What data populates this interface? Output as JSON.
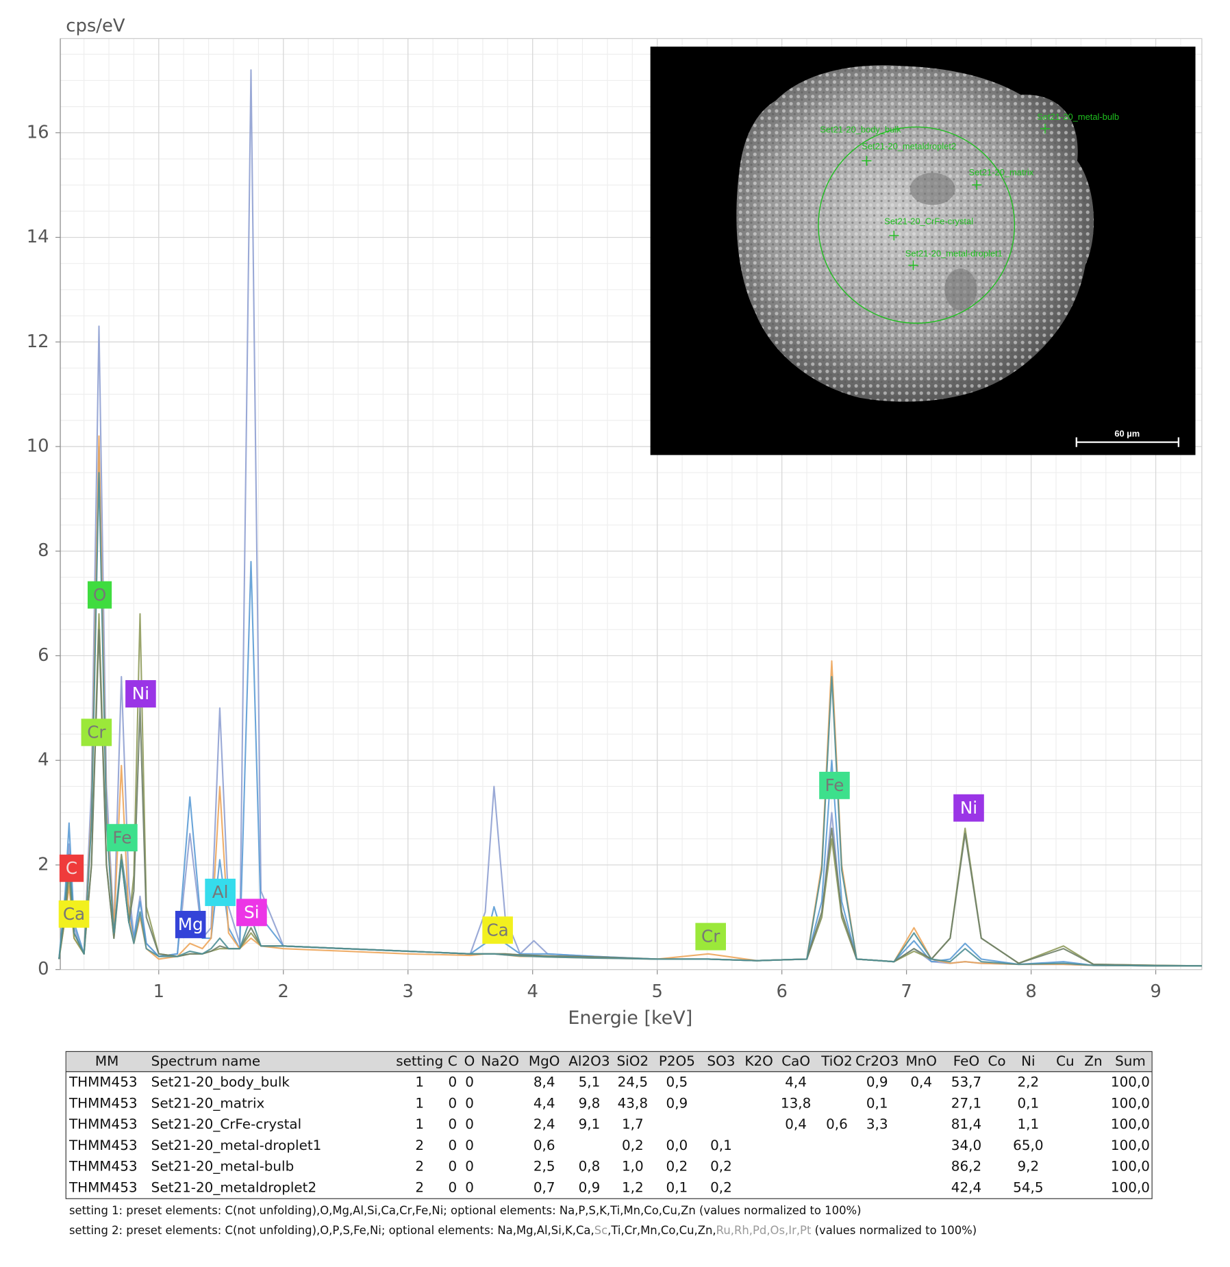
{
  "chart_data": {
    "type": "line",
    "y_label": "cps/eV",
    "x_label": "Energie [keV]",
    "xlim": [
      0.21,
      9.37
    ],
    "ylim": [
      0,
      17.8
    ],
    "xticks": [
      1,
      2,
      3,
      4,
      5,
      6,
      7,
      8,
      9
    ],
    "yticks": [
      0,
      2,
      4,
      6,
      8,
      10,
      12,
      14,
      16
    ],
    "grid": true,
    "minor_grid": true,
    "x": [
      0.2,
      0.25,
      0.28,
      0.32,
      0.4,
      0.46,
      0.52,
      0.58,
      0.64,
      0.7,
      0.76,
      0.8,
      0.85,
      0.9,
      1.0,
      1.15,
      1.25,
      1.35,
      1.42,
      1.49,
      1.56,
      1.65,
      1.74,
      1.82,
      2.0,
      2.5,
      3.0,
      3.5,
      3.62,
      3.69,
      3.78,
      3.9,
      4.01,
      4.12,
      4.5,
      5.0,
      5.41,
      5.8,
      6.2,
      6.32,
      6.4,
      6.48,
      6.6,
      6.9,
      7.06,
      7.2,
      7.35,
      7.47,
      7.6,
      7.9,
      8.26,
      8.5,
      9.0,
      9.37
    ],
    "series": [
      {
        "color": "#8fa0d2",
        "values": [
          0.2,
          1.2,
          2.4,
          0.8,
          0.3,
          3.5,
          12.3,
          3.5,
          0.8,
          5.6,
          1.6,
          0.6,
          1.4,
          0.5,
          0.25,
          0.3,
          2.6,
          0.6,
          0.8,
          5.0,
          1.2,
          0.5,
          17.2,
          1.5,
          0.45,
          0.4,
          0.35,
          0.3,
          1.1,
          3.5,
          1.0,
          0.3,
          0.55,
          0.3,
          0.25,
          0.2,
          0.2,
          0.17,
          0.2,
          1.0,
          3.0,
          1.0,
          0.2,
          0.15,
          0.4,
          0.15,
          0.12,
          0.15,
          0.12,
          0.1,
          0.1,
          0.08,
          0.07,
          0.07
        ]
      },
      {
        "color": "#5b9bd5",
        "values": [
          0.2,
          1.5,
          2.8,
          0.9,
          0.3,
          3.0,
          10.0,
          3.0,
          0.7,
          2.2,
          1.2,
          0.6,
          1.3,
          0.5,
          0.25,
          0.3,
          3.3,
          0.6,
          0.6,
          2.1,
          0.8,
          0.4,
          7.8,
          1.0,
          0.45,
          0.4,
          0.35,
          0.3,
          0.5,
          1.2,
          0.5,
          0.3,
          0.3,
          0.3,
          0.25,
          0.2,
          0.2,
          0.17,
          0.2,
          1.3,
          4.0,
          1.3,
          0.2,
          0.15,
          0.55,
          0.15,
          0.2,
          0.5,
          0.2,
          0.1,
          0.15,
          0.08,
          0.07,
          0.07
        ]
      },
      {
        "color": "#eda55a",
        "values": [
          0.2,
          1.0,
          1.6,
          0.6,
          0.3,
          3.0,
          10.2,
          3.0,
          0.8,
          3.9,
          1.0,
          0.5,
          1.0,
          0.4,
          0.2,
          0.25,
          0.5,
          0.4,
          0.6,
          3.5,
          0.7,
          0.4,
          0.6,
          0.45,
          0.4,
          0.35,
          0.3,
          0.27,
          0.3,
          0.3,
          0.28,
          0.25,
          0.25,
          0.24,
          0.22,
          0.2,
          0.3,
          0.17,
          0.2,
          2.0,
          5.9,
          2.0,
          0.2,
          0.15,
          0.8,
          0.2,
          0.12,
          0.15,
          0.12,
          0.1,
          0.1,
          0.08,
          0.07,
          0.07
        ]
      },
      {
        "color": "#8e9a5a",
        "values": [
          0.2,
          1.0,
          1.8,
          0.6,
          0.3,
          2.0,
          6.8,
          2.0,
          0.6,
          2.2,
          0.9,
          1.8,
          6.8,
          1.2,
          0.3,
          0.25,
          0.3,
          0.3,
          0.35,
          0.4,
          0.4,
          0.4,
          0.7,
          0.45,
          0.45,
          0.4,
          0.35,
          0.3,
          0.3,
          0.3,
          0.3,
          0.28,
          0.27,
          0.26,
          0.24,
          0.2,
          0.2,
          0.17,
          0.2,
          1.0,
          2.5,
          1.0,
          0.2,
          0.15,
          0.35,
          0.2,
          0.6,
          2.7,
          0.6,
          0.12,
          0.45,
          0.1,
          0.08,
          0.07
        ]
      },
      {
        "color": "#6f7f68",
        "values": [
          0.2,
          1.1,
          2.0,
          0.7,
          0.3,
          2.0,
          6.5,
          2.0,
          0.6,
          2.1,
          0.9,
          1.5,
          5.0,
          1.0,
          0.3,
          0.25,
          0.3,
          0.3,
          0.35,
          0.45,
          0.4,
          0.4,
          0.8,
          0.45,
          0.45,
          0.4,
          0.35,
          0.3,
          0.3,
          0.3,
          0.3,
          0.28,
          0.27,
          0.26,
          0.24,
          0.2,
          0.2,
          0.17,
          0.2,
          1.1,
          2.7,
          1.1,
          0.2,
          0.15,
          0.4,
          0.2,
          0.6,
          2.6,
          0.6,
          0.12,
          0.4,
          0.1,
          0.08,
          0.07
        ]
      },
      {
        "color": "#4f8f96",
        "values": [
          0.2,
          1.3,
          2.2,
          0.7,
          0.3,
          2.8,
          9.5,
          2.8,
          0.7,
          2.1,
          0.9,
          0.5,
          1.1,
          0.4,
          0.25,
          0.25,
          0.35,
          0.3,
          0.4,
          0.6,
          0.4,
          0.4,
          1.0,
          0.45,
          0.45,
          0.4,
          0.35,
          0.3,
          0.3,
          0.3,
          0.28,
          0.26,
          0.25,
          0.24,
          0.22,
          0.2,
          0.2,
          0.17,
          0.2,
          1.9,
          5.6,
          1.9,
          0.2,
          0.15,
          0.7,
          0.2,
          0.15,
          0.4,
          0.15,
          0.1,
          0.12,
          0.08,
          0.07,
          0.07
        ]
      }
    ],
    "annotations": [
      {
        "text": "C",
        "color": "#ef3b3b",
        "text_color": "#f4d8d8"
      },
      {
        "text": "Ca",
        "color": "#f2f01e",
        "text_color": "#777777"
      },
      {
        "text": "O",
        "color": "#3fdc3f",
        "text_color": "#777777"
      },
      {
        "text": "Cr",
        "color": "#9be83a",
        "text_color": "#777777"
      },
      {
        "text": "Fe",
        "color": "#3de08c",
        "text_color": "#777777"
      },
      {
        "text": "Ni",
        "color": "#9a35e6",
        "text_color": "#ffffff"
      },
      {
        "text": "Mg",
        "color": "#3443d8",
        "text_color": "#ffffff"
      },
      {
        "text": "Al",
        "color": "#35dcec",
        "text_color": "#777777"
      },
      {
        "text": "Si",
        "color": "#ec35e6",
        "text_color": "#ffffff"
      },
      {
        "text": "Ca",
        "color": "#f2f01e",
        "text_color": "#777777"
      },
      {
        "text": "Cr",
        "color": "#9be83a",
        "text_color": "#777777"
      },
      {
        "text": "Fe",
        "color": "#3de08c",
        "text_color": "#777777"
      },
      {
        "text": "Ni",
        "color": "#9a35e6",
        "text_color": "#ffffff"
      }
    ]
  },
  "image": {
    "markers": [
      "Set21-20_body_bulk",
      "Set21-20_metaldroplet2",
      "Set21-20_matrix",
      "Set21-20_CrFe-crystal",
      "Set21-20_metal-droplet1",
      "Set21-20_metal-bulb"
    ],
    "scale_bar": "60 µm"
  },
  "table": {
    "header": [
      "MM",
      "Spectrum name",
      "setting",
      "C",
      "O",
      "Na2O",
      "MgO",
      "Al2O3",
      "SiO2",
      "P2O5",
      "SO3",
      "K2O",
      "CaO",
      "TiO2",
      "Cr2O3",
      "MnO",
      "FeO",
      "Co",
      "Ni",
      "Cu",
      "Zn",
      "Sum"
    ],
    "rows": [
      [
        "THMM453",
        "Set21-20_body_bulk",
        "1",
        "0",
        "0",
        null,
        "8,4",
        "5,1",
        "24,5",
        "0,5",
        null,
        null,
        "4,4",
        null,
        "0,9",
        "0,4",
        "53,7",
        null,
        "2,2",
        null,
        null,
        "100,0"
      ],
      [
        "THMM453",
        "Set21-20_matrix",
        "1",
        "0",
        "0",
        null,
        "4,4",
        "9,8",
        "43,8",
        "0,9",
        null,
        null,
        "13,8",
        null,
        "0,1",
        null,
        "27,1",
        null,
        "0,1",
        null,
        null,
        "100,0"
      ],
      [
        "THMM453",
        "Set21-20_CrFe-crystal",
        "1",
        "0",
        "0",
        null,
        "2,4",
        "9,1",
        "1,7",
        null,
        null,
        null,
        "0,4",
        "0,6",
        "3,3",
        null,
        "81,4",
        null,
        "1,1",
        null,
        null,
        "100,0"
      ],
      [
        "THMM453",
        "Set21-20_metal-droplet1",
        "2",
        "0",
        "0",
        null,
        "0,6",
        null,
        "0,2",
        "0,0",
        "0,1",
        null,
        null,
        null,
        null,
        null,
        "34,0",
        null,
        "65,0",
        null,
        null,
        "100,0"
      ],
      [
        "THMM453",
        "Set21-20_metal-bulb",
        "2",
        "0",
        "0",
        null,
        "2,5",
        "0,8",
        "1,0",
        "0,2",
        "0,2",
        null,
        null,
        null,
        null,
        null,
        "86,2",
        null,
        "9,2",
        null,
        null,
        "100,0"
      ],
      [
        "THMM453",
        "Set21-20_metaldroplet2",
        "2",
        "0",
        "0",
        null,
        "0,7",
        "0,9",
        "1,2",
        "0,1",
        "0,2",
        null,
        null,
        null,
        null,
        null,
        "42,4",
        null,
        "54,5",
        null,
        null,
        "100,0"
      ]
    ]
  },
  "notes": [
    [
      {
        "text": "setting 1: preset elements: C(not unfolding),O,Mg,Al,Si,Ca,Cr,Fe,Ni; optional elements: Na,P,S,K,Ti,Mn,Co,Cu,Zn (values normalized to 100%)"
      }
    ],
    [
      {
        "text": "setting 2: preset elements: C(not unfolding),O,P,S,Fe,Ni; optional elements: Na,Mg,Al,Si,K,Ca,"
      },
      {
        "text": "Sc",
        "muted": true
      },
      {
        "text": ",Ti,Cr,Mn,Co,Cu,Zn,"
      },
      {
        "text": "Ru,Rh,Pd,Os,Ir,Pt",
        "muted": true
      },
      {
        "text": " (values normalized to 100%)"
      }
    ]
  ]
}
